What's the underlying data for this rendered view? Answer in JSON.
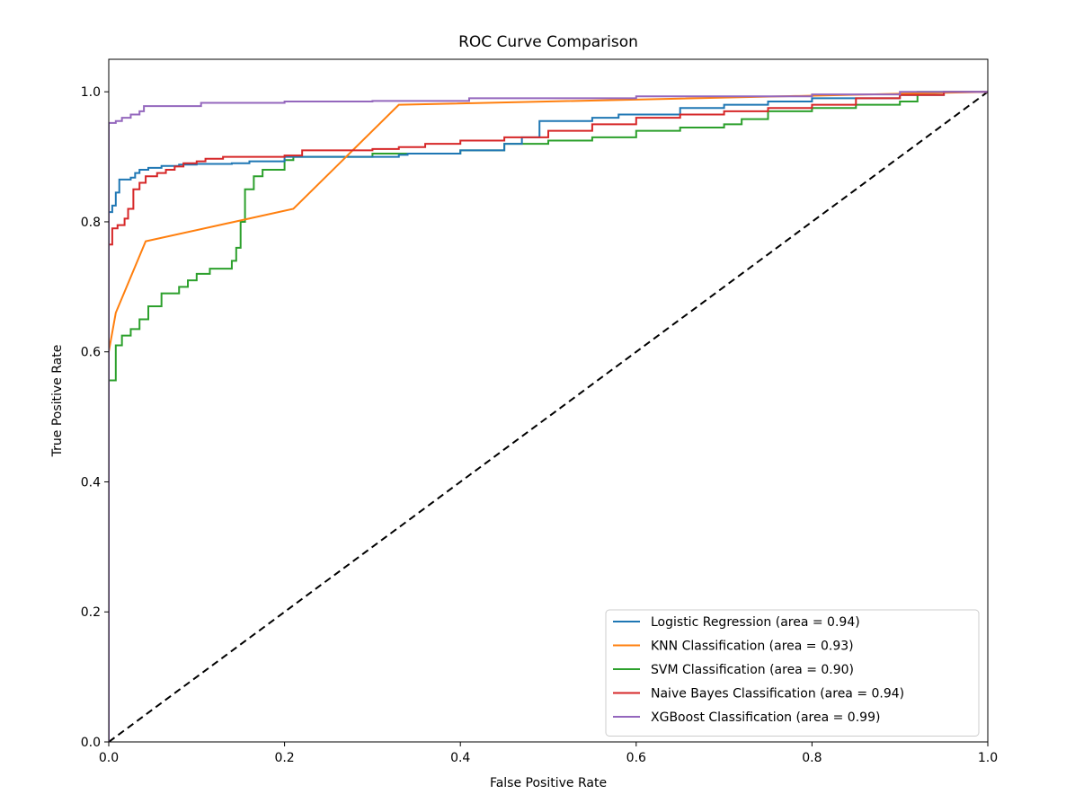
{
  "chart_data": {
    "type": "line",
    "title": "ROC Curve Comparison",
    "xlabel": "False Positive Rate",
    "ylabel": "True Positive Rate",
    "xlim": [
      0.0,
      1.0
    ],
    "ylim": [
      0.0,
      1.05
    ],
    "xticks": [
      {
        "value": 0.0,
        "label": "0.0"
      },
      {
        "value": 0.2,
        "label": "0.2"
      },
      {
        "value": 0.4,
        "label": "0.4"
      },
      {
        "value": 0.6,
        "label": "0.6"
      },
      {
        "value": 0.8,
        "label": "0.8"
      },
      {
        "value": 1.0,
        "label": "1.0"
      }
    ],
    "yticks": [
      {
        "value": 0.0,
        "label": "0.0"
      },
      {
        "value": 0.2,
        "label": "0.2"
      },
      {
        "value": 0.4,
        "label": "0.4"
      },
      {
        "value": 0.6,
        "label": "0.6"
      },
      {
        "value": 0.8,
        "label": "0.8"
      },
      {
        "value": 1.0,
        "label": "1.0"
      }
    ],
    "grid": false,
    "legend_position": "lower-right",
    "series": [
      {
        "name": "Logistic Regression (area = 0.94)",
        "color": "#1f77b4",
        "step": true,
        "points": [
          [
            0.0,
            0.0
          ],
          [
            0.0,
            0.815
          ],
          [
            0.004,
            0.825
          ],
          [
            0.008,
            0.845
          ],
          [
            0.012,
            0.865
          ],
          [
            0.025,
            0.868
          ],
          [
            0.03,
            0.875
          ],
          [
            0.035,
            0.88
          ],
          [
            0.045,
            0.883
          ],
          [
            0.06,
            0.886
          ],
          [
            0.08,
            0.888
          ],
          [
            0.1,
            0.889
          ],
          [
            0.12,
            0.889
          ],
          [
            0.14,
            0.89
          ],
          [
            0.16,
            0.893
          ],
          [
            0.2,
            0.9
          ],
          [
            0.33,
            0.903
          ],
          [
            0.34,
            0.905
          ],
          [
            0.4,
            0.91
          ],
          [
            0.45,
            0.92
          ],
          [
            0.47,
            0.93
          ],
          [
            0.49,
            0.955
          ],
          [
            0.55,
            0.96
          ],
          [
            0.58,
            0.965
          ],
          [
            0.65,
            0.975
          ],
          [
            0.7,
            0.98
          ],
          [
            0.75,
            0.985
          ],
          [
            0.8,
            0.99
          ],
          [
            0.9,
            0.995
          ],
          [
            0.95,
            1.0
          ],
          [
            1.0,
            1.0
          ]
        ]
      },
      {
        "name": "KNN Classification (area = 0.93)",
        "color": "#ff7f0e",
        "step": false,
        "points": [
          [
            0.0,
            0.0
          ],
          [
            0.0,
            0.6
          ],
          [
            0.008,
            0.66
          ],
          [
            0.042,
            0.77
          ],
          [
            0.21,
            0.82
          ],
          [
            0.33,
            0.98
          ],
          [
            1.0,
            1.0
          ]
        ]
      },
      {
        "name": "SVM Classification (area = 0.90)",
        "color": "#2ca02c",
        "step": true,
        "points": [
          [
            0.0,
            0.0
          ],
          [
            0.0,
            0.556
          ],
          [
            0.008,
            0.61
          ],
          [
            0.015,
            0.625
          ],
          [
            0.025,
            0.635
          ],
          [
            0.035,
            0.65
          ],
          [
            0.045,
            0.67
          ],
          [
            0.06,
            0.69
          ],
          [
            0.08,
            0.7
          ],
          [
            0.09,
            0.71
          ],
          [
            0.1,
            0.72
          ],
          [
            0.115,
            0.728
          ],
          [
            0.14,
            0.74
          ],
          [
            0.145,
            0.76
          ],
          [
            0.15,
            0.8
          ],
          [
            0.155,
            0.85
          ],
          [
            0.165,
            0.87
          ],
          [
            0.175,
            0.88
          ],
          [
            0.2,
            0.895
          ],
          [
            0.21,
            0.9
          ],
          [
            0.3,
            0.905
          ],
          [
            0.4,
            0.91
          ],
          [
            0.45,
            0.92
          ],
          [
            0.5,
            0.925
          ],
          [
            0.55,
            0.93
          ],
          [
            0.6,
            0.94
          ],
          [
            0.65,
            0.945
          ],
          [
            0.7,
            0.95
          ],
          [
            0.72,
            0.958
          ],
          [
            0.75,
            0.97
          ],
          [
            0.8,
            0.975
          ],
          [
            0.85,
            0.98
          ],
          [
            0.9,
            0.985
          ],
          [
            0.92,
            1.0
          ],
          [
            1.0,
            1.0
          ]
        ]
      },
      {
        "name": "Naive Bayes Classification (area = 0.94)",
        "color": "#d62728",
        "step": true,
        "points": [
          [
            0.0,
            0.0
          ],
          [
            0.0,
            0.765
          ],
          [
            0.004,
            0.79
          ],
          [
            0.01,
            0.795
          ],
          [
            0.018,
            0.805
          ],
          [
            0.022,
            0.82
          ],
          [
            0.028,
            0.85
          ],
          [
            0.035,
            0.86
          ],
          [
            0.042,
            0.87
          ],
          [
            0.055,
            0.875
          ],
          [
            0.065,
            0.88
          ],
          [
            0.075,
            0.885
          ],
          [
            0.085,
            0.89
          ],
          [
            0.1,
            0.893
          ],
          [
            0.11,
            0.897
          ],
          [
            0.13,
            0.9
          ],
          [
            0.2,
            0.902
          ],
          [
            0.22,
            0.91
          ],
          [
            0.3,
            0.912
          ],
          [
            0.33,
            0.915
          ],
          [
            0.36,
            0.92
          ],
          [
            0.4,
            0.925
          ],
          [
            0.45,
            0.93
          ],
          [
            0.5,
            0.94
          ],
          [
            0.55,
            0.95
          ],
          [
            0.6,
            0.96
          ],
          [
            0.65,
            0.965
          ],
          [
            0.7,
            0.97
          ],
          [
            0.75,
            0.975
          ],
          [
            0.8,
            0.98
          ],
          [
            0.85,
            0.99
          ],
          [
            0.9,
            0.995
          ],
          [
            0.95,
            1.0
          ],
          [
            1.0,
            1.0
          ]
        ]
      },
      {
        "name": "XGBoost Classification (area = 0.99)",
        "color": "#9467bd",
        "step": true,
        "points": [
          [
            0.0,
            0.0
          ],
          [
            0.0,
            0.952
          ],
          [
            0.008,
            0.955
          ],
          [
            0.015,
            0.96
          ],
          [
            0.025,
            0.965
          ],
          [
            0.035,
            0.97
          ],
          [
            0.04,
            0.978
          ],
          [
            0.105,
            0.983
          ],
          [
            0.2,
            0.985
          ],
          [
            0.3,
            0.986
          ],
          [
            0.41,
            0.99
          ],
          [
            0.6,
            0.993
          ],
          [
            0.8,
            0.996
          ],
          [
            0.9,
            1.0
          ],
          [
            1.0,
            1.0
          ]
        ]
      }
    ],
    "reference_line": {
      "color": "#000000",
      "dashed": true,
      "points": [
        [
          0.0,
          0.0
        ],
        [
          1.0,
          1.0
        ]
      ]
    }
  }
}
